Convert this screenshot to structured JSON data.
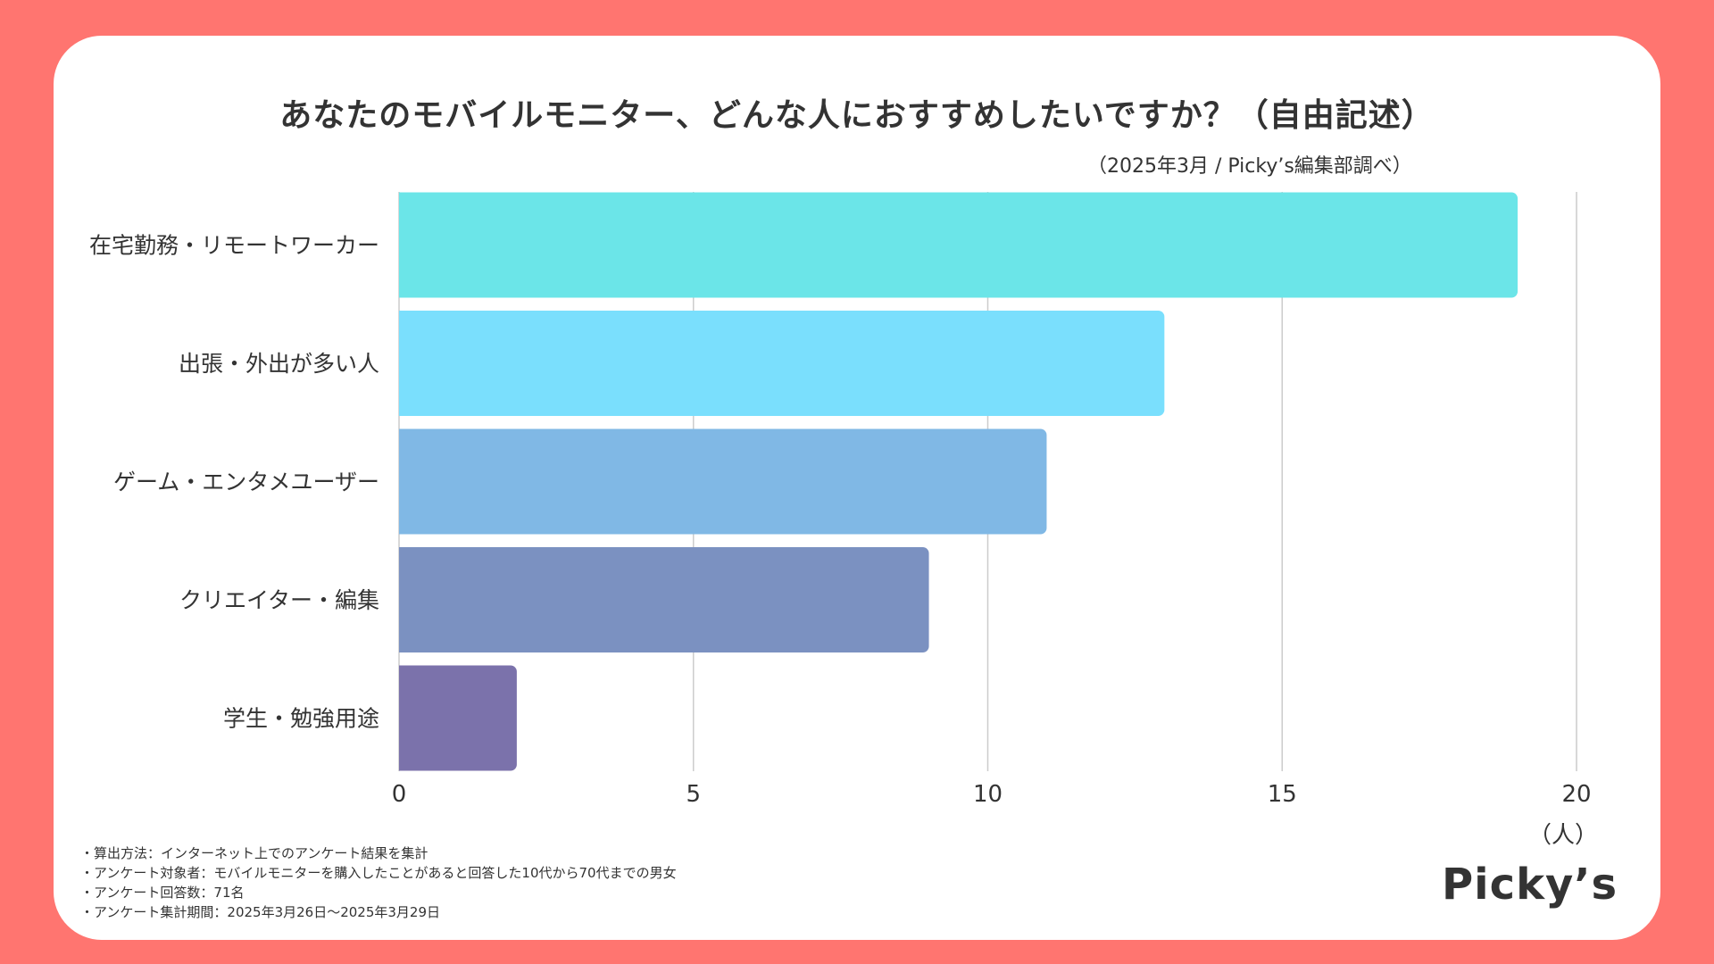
{
  "title": "あなたのモバイルモニター、どんな人におすすめしたいですか？（自由記述）",
  "source": "（2025年3月 / Picky’s編集部調べ）",
  "unit": "（人）",
  "notes": [
    "・算出方法：インターネット上でのアンケート結果を集計",
    "・アンケート対象者：モバイルモニターを購入したことがあると回答した10代から70代までの男女",
    "・アンケート回答数：71名",
    "・アンケート集計期間：2025年3月26日〜2025年3月29日"
  ],
  "logo": "Picky’s",
  "colors": {
    "background": "#FF7570",
    "card": "#FFFFFF",
    "text": "#333333",
    "grid": "#CCCCCC"
  },
  "chart_data": {
    "type": "bar",
    "orientation": "horizontal",
    "title": "あなたのモバイルモニター、どんな人におすすめしたいですか？（自由記述）",
    "xlabel": "（人）",
    "ylabel": "",
    "xlim": [
      0,
      20
    ],
    "ticks": [
      0,
      5,
      10,
      15,
      20
    ],
    "grid": true,
    "categories": [
      "在宅勤務・リモートワーカー",
      "出張・外出が多い人",
      "ゲーム・エンタメユーザー",
      "クリエイター・編集",
      "学生・勉強用途"
    ],
    "values": [
      19,
      13,
      11,
      9,
      2
    ],
    "bar_colors": [
      "#6BE5E8",
      "#7ADFFD",
      "#80B8E5",
      "#7B91C1",
      "#7B72AB"
    ]
  }
}
